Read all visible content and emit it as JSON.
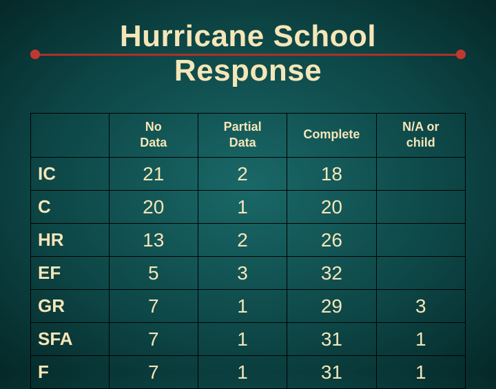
{
  "title": "Hurricane School Response",
  "colors": {
    "text": "#f5e6b8",
    "rule": "#b03028",
    "dot": "#c03830",
    "border": "#000000",
    "bg_center": "#1a6868",
    "bg_edge": "#052828"
  },
  "table": {
    "columns": [
      "No Data",
      "Partial Data",
      "Complete",
      "N/A or child"
    ],
    "rows": [
      {
        "label": "IC",
        "cells": [
          "21",
          "2",
          "18",
          ""
        ]
      },
      {
        "label": "C",
        "cells": [
          "20",
          "1",
          "20",
          ""
        ]
      },
      {
        "label": "HR",
        "cells": [
          "13",
          "2",
          "26",
          ""
        ]
      },
      {
        "label": "EF",
        "cells": [
          "5",
          "3",
          "32",
          ""
        ]
      },
      {
        "label": "GR",
        "cells": [
          "7",
          "1",
          "29",
          "3"
        ]
      },
      {
        "label": "SFA",
        "cells": [
          "7",
          "1",
          "31",
          "1"
        ]
      },
      {
        "label": "F",
        "cells": [
          "7",
          "1",
          "31",
          "1"
        ]
      }
    ]
  },
  "fontsize": {
    "title": 44,
    "header": 18,
    "rowlabel": 26,
    "cell": 28
  }
}
